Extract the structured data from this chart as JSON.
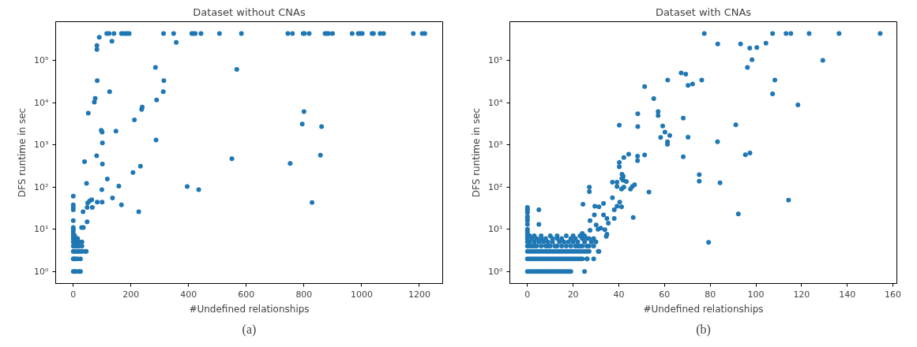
{
  "chart_data": [
    {
      "type": "scatter",
      "title": "Dataset without CNAs",
      "xlabel": "#Undefined relationships",
      "ylabel": "DFS runtime in sec",
      "annotations": [
        "(a)"
      ],
      "log": "y",
      "marker": "circle",
      "xlim": [
        -61,
        1281
      ],
      "xticks": [
        0,
        200,
        400,
        600,
        800,
        1000,
        1200
      ],
      "ylim": [
        0.52,
        820000
      ],
      "yticks": [
        {
          "value": 1,
          "label": "10⁰"
        },
        {
          "value": 10,
          "label": "10¹"
        },
        {
          "value": 100,
          "label": "10²"
        },
        {
          "value": 1000,
          "label": "10³"
        },
        {
          "value": 10000,
          "label": "10⁴"
        },
        {
          "value": 100000,
          "label": "10⁵"
        }
      ],
      "series": [
        {
          "color": "#1f77b4",
          "x": [
            116,
            124,
            141,
            167,
            173,
            181,
            187,
            194,
            313,
            348,
            411,
            417,
            423,
            443,
            507,
            583,
            744,
            760,
            797,
            802,
            818,
            873,
            879,
            885,
            899,
            967,
            988,
            995,
            1002,
            1036,
            1041,
            1064,
            1076,
            1179,
            1210,
            1219,
            90,
            134,
            82,
            82,
            357,
            285,
            83,
            314,
            126,
            312,
            76,
            73,
            289,
            237,
            239,
            212,
            52,
            97,
            100,
            148,
            101,
            287,
            81,
            39,
            101,
            233,
            207,
            118,
            46,
            158,
            99,
            136,
            83,
            100,
            167,
            64,
            57,
            50,
            48,
            66,
            227,
            34,
            48,
            29,
            35,
            395,
            435,
            567,
            800,
            794,
            861,
            550,
            857,
            752,
            828,
            0,
            0,
            0,
            0,
            0,
            0,
            0,
            0,
            0,
            0,
            0,
            0,
            0,
            0,
            0,
            5,
            10,
            20,
            25,
            3,
            8,
            15,
            25,
            4,
            10,
            15,
            20,
            25,
            30,
            40,
            45,
            5,
            10,
            15,
            20,
            30,
            5,
            15,
            20,
            30,
            10,
            15,
            5,
            0
          ],
          "values": [
            430000,
            430000,
            430000,
            430000,
            430000,
            430000,
            430000,
            430000,
            430000,
            430000,
            430000,
            430000,
            430000,
            430000,
            430000,
            430000,
            430000,
            430000,
            430000,
            430000,
            430000,
            430000,
            430000,
            430000,
            430000,
            430000,
            430000,
            430000,
            430000,
            430000,
            430000,
            430000,
            430000,
            430000,
            430000,
            430000,
            349000,
            282000,
            224000,
            181000,
            265000,
            68000,
            33000,
            33000,
            18000,
            18000,
            12600,
            10200,
            11500,
            6900,
            7800,
            3900,
            5600,
            2200,
            2000,
            2100,
            1100,
            1300,
            550,
            400,
            350,
            310,
            220,
            155,
            122,
            105,
            87,
            55,
            44,
            44,
            38,
            50,
            47,
            42,
            33,
            33,
            26,
            26,
            15,
            11,
            11,
            103,
            87,
            61000,
            6100,
            3100,
            2700,
            470,
            570,
            360,
            43,
            61,
            38,
            33,
            29,
            16,
            11,
            10,
            9,
            7,
            6,
            5,
            4,
            3,
            2,
            1,
            1,
            1,
            1,
            1,
            2,
            2,
            2,
            2,
            3,
            3,
            3,
            3,
            3,
            3,
            3,
            3,
            4,
            4,
            4,
            4,
            4,
            5,
            5,
            5,
            5,
            6,
            6,
            7,
            8
          ]
        }
      ]
    },
    {
      "type": "scatter",
      "title": "Dataset with CNAs",
      "xlabel": "#Undefined relationships",
      "ylabel": "DFS runtime in sec",
      "annotations": [
        "(b)"
      ],
      "log": "y",
      "marker": "circle",
      "xlim": [
        -7.7,
        161.7
      ],
      "xticks": [
        0,
        20,
        40,
        60,
        80,
        100,
        120,
        140,
        160
      ],
      "ylim": [
        0.52,
        820000
      ],
      "yticks": [
        {
          "value": 1,
          "label": "10⁰"
        },
        {
          "value": 10,
          "label": "10¹"
        },
        {
          "value": 100,
          "label": "10²"
        },
        {
          "value": 1000,
          "label": "10³"
        },
        {
          "value": 10000,
          "label": "10⁴"
        },
        {
          "value": 100000,
          "label": "10⁵"
        }
      ],
      "series": [
        {
          "color": "#1f77b4",
          "x": [
            77.4,
            107.3,
            113.2,
            115.3,
            123.3,
            136.4,
            154.4,
            83.3,
            93.3,
            97.3,
            100.4,
            104.4,
            98.3,
            96.3,
            129.3,
            67.3,
            69.3,
            61.4,
            70.3,
            72.3,
            76.3,
            108.3,
            107.3,
            118.4,
            55.3,
            57.2,
            57.2,
            68.2,
            59.2,
            60.2,
            58.3,
            62.3,
            61.3,
            61.3,
            70.3,
            83.2,
            91.2,
            95.4,
            97.4,
            68.2,
            75.2,
            75.2,
            84.3,
            114.3,
            92.3,
            79.3,
            51.3,
            48.3,
            48.3,
            40.2,
            48.2,
            48.2,
            51.3,
            44.3,
            42.2,
            40.2,
            40.2,
            41.4,
            41.9,
            41.3,
            41.9,
            43.3,
            42.2,
            41.2,
            46.9,
            45.9,
            45.1,
            53.2,
            46.3,
            37.2,
            39.2,
            39.2,
            37.2,
            41.2,
            40.4,
            39.2,
            38.0,
            38.0,
            33.3,
            31.3,
            29.5,
            29.3,
            33.3,
            34.8,
            35.4,
            34.5,
            34.8,
            33.9,
            30.9,
            30.1,
            32.1,
            27.4,
            27.4,
            27.1,
            27.1,
            24.3,
            31.3,
            26.2,
            0,
            1,
            2,
            3,
            4,
            5,
            6,
            7,
            8,
            9,
            10,
            11,
            12,
            13,
            14,
            15,
            16,
            17,
            18,
            19,
            25,
            0,
            1,
            2,
            3,
            4,
            5,
            6,
            7,
            8,
            9,
            10,
            11,
            12,
            13,
            14,
            15,
            16,
            17,
            18,
            19,
            20,
            21,
            22,
            23,
            24,
            26,
            29,
            0,
            1,
            2,
            3,
            4,
            5,
            6,
            7,
            8,
            9,
            10,
            11,
            12,
            13,
            14,
            15,
            16,
            17,
            18,
            19,
            20,
            21,
            22,
            23,
            24,
            25,
            26,
            27,
            31,
            0,
            1,
            2,
            3,
            4,
            6,
            8,
            9,
            10,
            12,
            13,
            15,
            17,
            19,
            21,
            22,
            23,
            24,
            26,
            27,
            29,
            0,
            1,
            3,
            5,
            7,
            9,
            11,
            14,
            16,
            18,
            20,
            22,
            25,
            28,
            30,
            0,
            2,
            4,
            6,
            8,
            11,
            13,
            15,
            19,
            21,
            24,
            26,
            27,
            29,
            0,
            1,
            3,
            6,
            10,
            13,
            17,
            23,
            25,
            0,
            0,
            0,
            0,
            0,
            0,
            0,
            0,
            0,
            0,
            0,
            5,
            5,
            20,
            24
          ],
          "values": [
            430000,
            430000,
            430000,
            430000,
            430000,
            430000,
            430000,
            244000,
            244000,
            194000,
            200000,
            255000,
            103000,
            68000,
            100000,
            50000,
            47000,
            34000,
            25500,
            27500,
            34000,
            34000,
            16100,
            8800,
            12400,
            6100,
            4900,
            4300,
            2800,
            2000,
            1500,
            1660,
            1180,
            1020,
            1510,
            1180,
            2970,
            580,
            640,
            520,
            196,
            138,
            126,
            49,
            23,
            4.9,
            24000,
            5400,
            2700,
            2900,
            540,
            420,
            575,
            600,
            500,
            380,
            300,
            200,
            179,
            158,
            145,
            134,
            100,
            89,
            113,
            103,
            89,
            76,
            19,
            130,
            130,
            103,
            56,
            34,
            44,
            35,
            29,
            18,
            41,
            34,
            35,
            22,
            22,
            18,
            14,
            6.8,
            7.6,
            9.8,
            10,
            12.6,
            10.6,
            9.5,
            16,
            100,
            78,
            39,
            3,
            2,
            1,
            1,
            1,
            1,
            1,
            1,
            1,
            1,
            1,
            1,
            1,
            1,
            1,
            1,
            1,
            1,
            1,
            1,
            1,
            1,
            1,
            2,
            2,
            2,
            2,
            2,
            2,
            2,
            2,
            2,
            2,
            2,
            2,
            2,
            2,
            2,
            2,
            2,
            2,
            2,
            2,
            2,
            2,
            2,
            2,
            2,
            2,
            2,
            3,
            3,
            3,
            3,
            3,
            3,
            3,
            3,
            3,
            3,
            3,
            3,
            3,
            3,
            3,
            3,
            3,
            3,
            3,
            3,
            3,
            3,
            3,
            3,
            3,
            3,
            3,
            3,
            3,
            4,
            4,
            4,
            4,
            4,
            4,
            4,
            4,
            4,
            4,
            4,
            4,
            4,
            4,
            4,
            4,
            4,
            4,
            4,
            4,
            4,
            5,
            5,
            5,
            5,
            5,
            5,
            5,
            5,
            5,
            5,
            5,
            5,
            5,
            5,
            5,
            6,
            6,
            6,
            6,
            6,
            6,
            6,
            6,
            6,
            6,
            6,
            6,
            6,
            6,
            7,
            7,
            7,
            7,
            7,
            7,
            7,
            7,
            7,
            8,
            9,
            10,
            13,
            16,
            18,
            20,
            25,
            28,
            30,
            33,
            29,
            13,
            7,
            8
          ]
        }
      ]
    }
  ]
}
